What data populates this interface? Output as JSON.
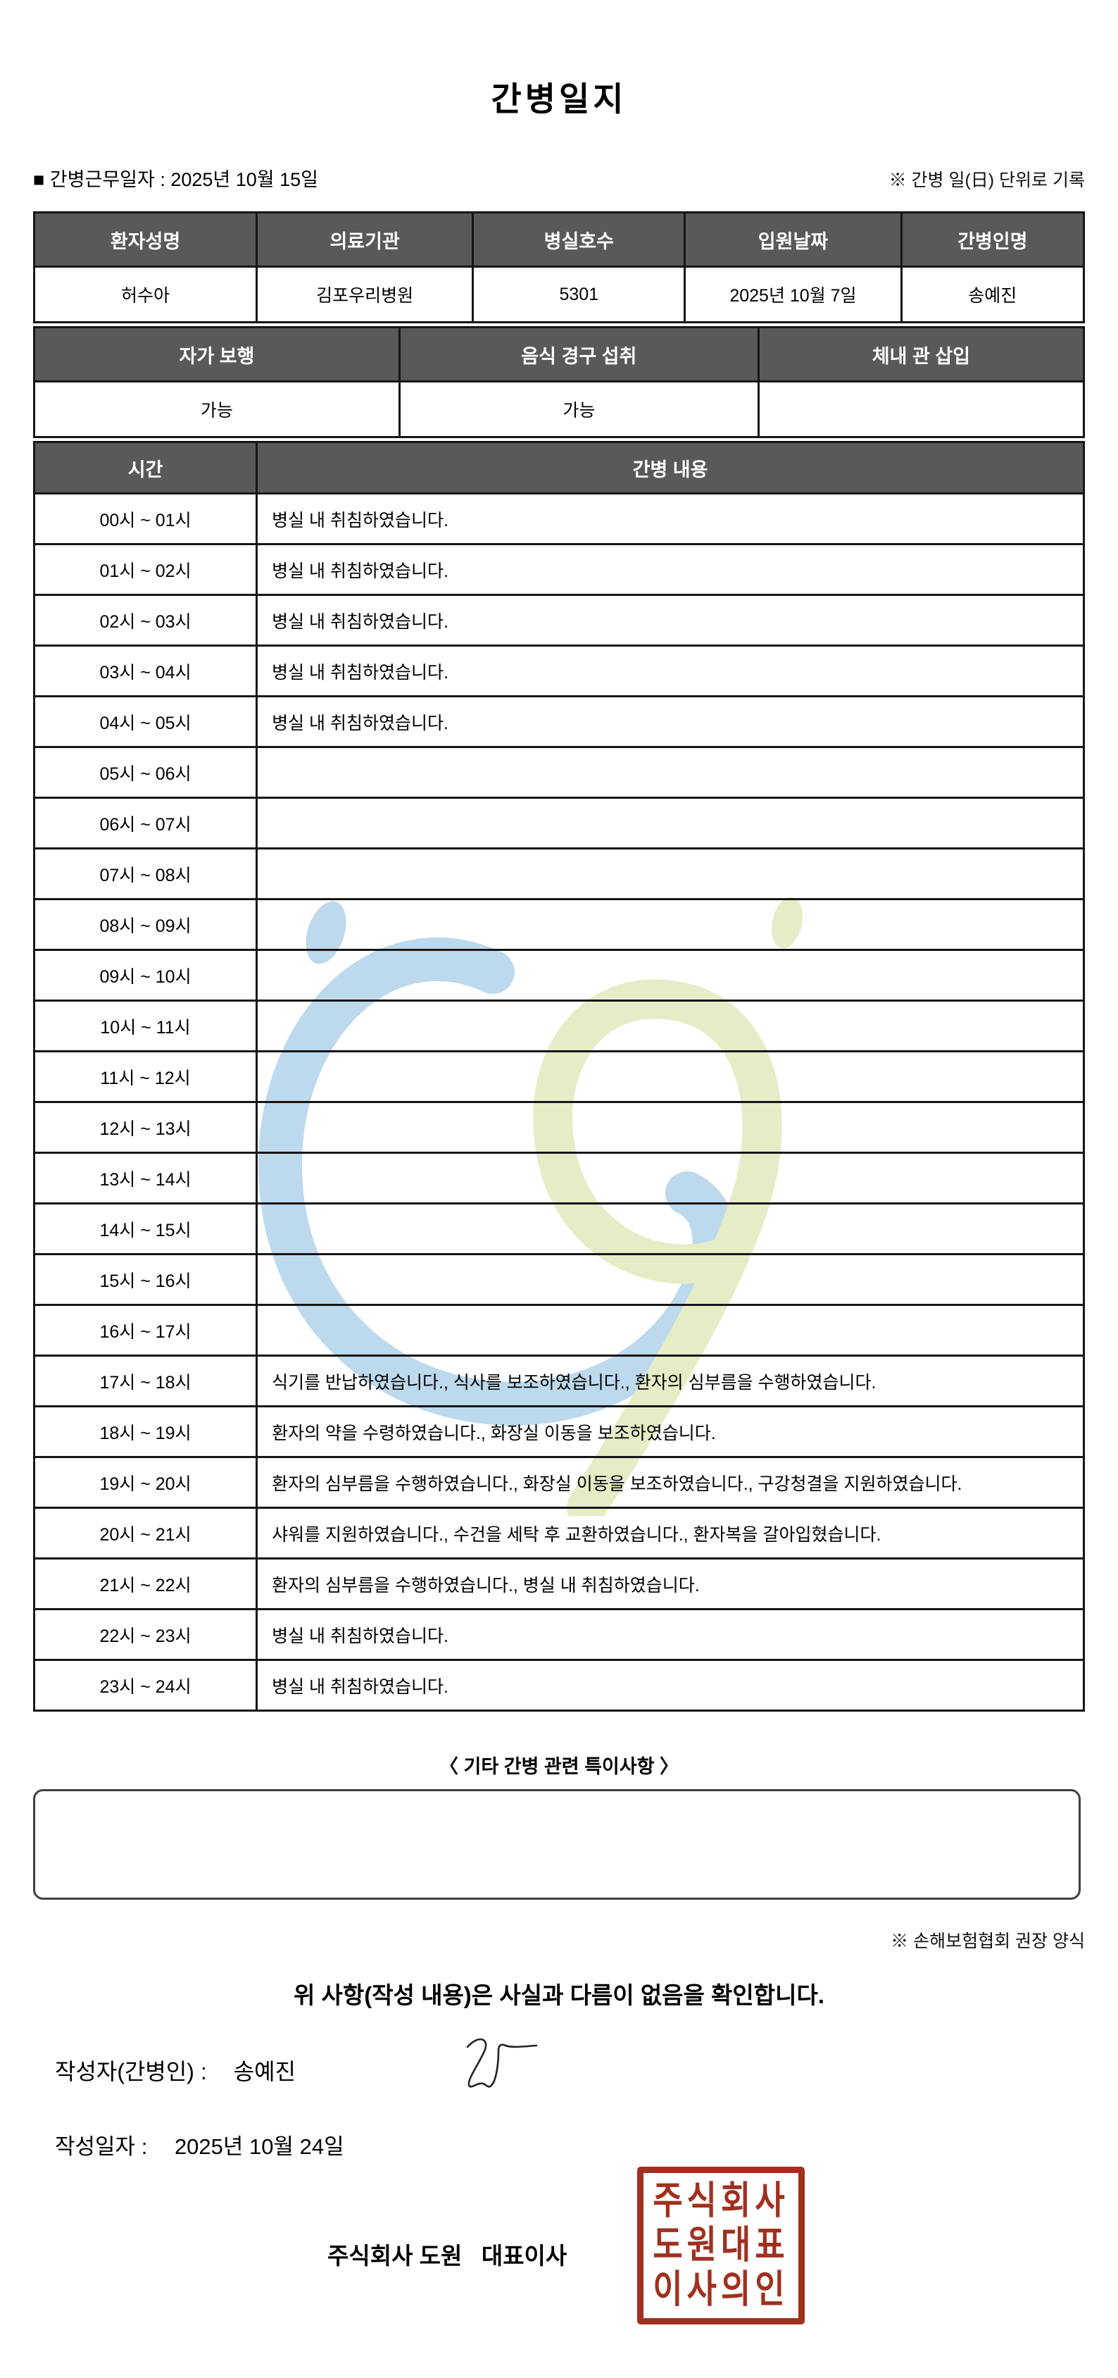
{
  "title": "간병일지",
  "meta": {
    "work_date_line": "■ 간병근무일자 :  2025년 10월 15일",
    "unit_note": "※ 간병 일(日) 단위로 기록"
  },
  "patient_table": {
    "headers": [
      "환자성명",
      "의료기관",
      "병실호수",
      "입원날짜",
      "간병인명"
    ],
    "values": [
      "허수아",
      "김포우리병원",
      "5301",
      "2025년 10월 7일",
      "송예진"
    ]
  },
  "status_table": {
    "headers": [
      "자가 보행",
      "음식 경구 섭취",
      "체내 관 삽입"
    ],
    "values": [
      "가능",
      "가능",
      ""
    ]
  },
  "log_table": {
    "time_header": "시간",
    "content_header": "간병 내용",
    "rows": [
      {
        "time": "00시 ~ 01시",
        "content": "병실 내 취침하였습니다."
      },
      {
        "time": "01시 ~ 02시",
        "content": "병실 내 취침하였습니다."
      },
      {
        "time": "02시 ~ 03시",
        "content": "병실 내 취침하였습니다."
      },
      {
        "time": "03시 ~ 04시",
        "content": "병실 내 취침하였습니다."
      },
      {
        "time": "04시 ~ 05시",
        "content": "병실 내 취침하였습니다."
      },
      {
        "time": "05시 ~ 06시",
        "content": ""
      },
      {
        "time": "06시 ~ 07시",
        "content": ""
      },
      {
        "time": "07시 ~ 08시",
        "content": ""
      },
      {
        "time": "08시 ~ 09시",
        "content": ""
      },
      {
        "time": "09시 ~ 10시",
        "content": ""
      },
      {
        "time": "10시 ~ 11시",
        "content": ""
      },
      {
        "time": "11시 ~ 12시",
        "content": ""
      },
      {
        "time": "12시 ~ 13시",
        "content": ""
      },
      {
        "time": "13시 ~ 14시",
        "content": ""
      },
      {
        "time": "14시 ~ 15시",
        "content": ""
      },
      {
        "time": "15시 ~ 16시",
        "content": ""
      },
      {
        "time": "16시 ~ 17시",
        "content": ""
      },
      {
        "time": "17시 ~ 18시",
        "content": "식기를 반납하였습니다., 식사를 보조하였습니다., 환자의 심부름을 수행하였습니다."
      },
      {
        "time": "18시 ~ 19시",
        "content": "환자의 약을 수령하였습니다., 화장실 이동을 보조하였습니다."
      },
      {
        "time": "19시 ~ 20시",
        "content": "환자의 심부름을 수행하였습니다., 화장실 이동을 보조하였습니다., 구강청결을 지원하였습니다."
      },
      {
        "time": "20시 ~ 21시",
        "content": "샤워를 지원하였습니다., 수건을 세탁 후 교환하였습니다., 환자복을 갈아입혔습니다."
      },
      {
        "time": "21시 ~ 22시",
        "content": "환자의 심부름을 수행하였습니다., 병실 내 취침하였습니다."
      },
      {
        "time": "22시 ~ 23시",
        "content": "병실 내 취침하였습니다."
      },
      {
        "time": "23시 ~ 24시",
        "content": "병실 내 취침하였습니다."
      }
    ]
  },
  "extra": {
    "heading": "〈 기타 간병 관련 특이사항 〉",
    "box_text": "",
    "form_note": "※ 손해보험협회 권장 양식"
  },
  "footer": {
    "confirmation": "위 사항(작성 내용)은 사실과 다름이 없음을 확인합니다.",
    "writer_label": "작성자(간병인) :",
    "writer_name": "송예진",
    "date_label": "작성일자 :",
    "date_value": "2025년 10월 24일",
    "company_line": "주식회사 도원   대표이사",
    "stamp_lines": [
      "주식회사",
      "도원대표",
      "이사의인"
    ]
  },
  "colors": {
    "header_bg": "#58595b",
    "table_border": "#161616",
    "stamp_red": "#a1301f",
    "watermark_blue": "#b5d5ec",
    "watermark_green": "#e3ecc2"
  }
}
